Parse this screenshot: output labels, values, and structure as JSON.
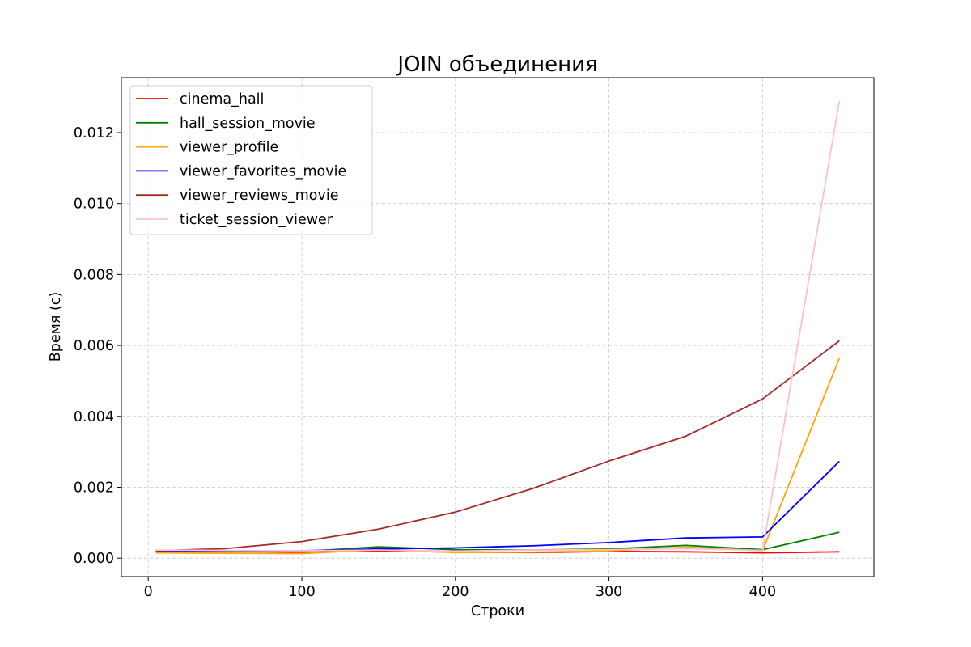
{
  "chart_data": {
    "type": "line",
    "title": "JOIN объединения",
    "xlabel": "Строки",
    "ylabel": "Время (с)",
    "xlim": [
      -17.5,
      472.5
    ],
    "ylim": [
      -0.00052,
      0.01355
    ],
    "xticks": [
      0,
      100,
      200,
      300,
      400
    ],
    "xtick_labels": [
      "0",
      "100",
      "200",
      "300",
      "400"
    ],
    "yticks": [
      0.0,
      0.002,
      0.004,
      0.006,
      0.008,
      0.01,
      0.012
    ],
    "ytick_labels": [
      "0.000",
      "0.002",
      "0.004",
      "0.006",
      "0.008",
      "0.010",
      "0.012"
    ],
    "grid": true,
    "legend_position": "upper-left",
    "x": [
      5,
      50,
      100,
      150,
      200,
      250,
      300,
      350,
      400,
      450
    ],
    "series": [
      {
        "name": "cinema_hall",
        "color": "#ff0000",
        "values": [
          0.00017,
          0.00019,
          0.00017,
          0.00021,
          0.00017,
          0.00016,
          0.00019,
          0.00018,
          0.00015,
          0.00018
        ]
      },
      {
        "name": "hall_session_movie",
        "color": "#008000",
        "values": [
          0.00019,
          0.00018,
          0.00019,
          0.00032,
          0.00024,
          0.00023,
          0.00026,
          0.00036,
          0.00024,
          0.00073
        ]
      },
      {
        "name": "viewer_profile",
        "color": "#ffa500",
        "values": [
          0.00015,
          0.00014,
          0.00013,
          0.00024,
          0.00016,
          0.00017,
          0.00021,
          0.00031,
          0.00021,
          0.00564
        ]
      },
      {
        "name": "viewer_favorites_movie",
        "color": "#0000ff",
        "values": [
          0.0002,
          0.00021,
          0.00021,
          0.00026,
          0.00029,
          0.00035,
          0.00044,
          0.00057,
          0.0006,
          0.00273
        ]
      },
      {
        "name": "viewer_reviews_movie",
        "color": "#a52a2a",
        "values": [
          0.00021,
          0.00027,
          0.00047,
          0.00082,
          0.0013,
          0.00196,
          0.00274,
          0.00344,
          0.00449,
          0.00613
        ]
      },
      {
        "name": "ticket_session_viewer",
        "color": "#ffc0cb",
        "values": [
          0.00023,
          0.00022,
          0.00021,
          0.00023,
          0.0002,
          0.00023,
          0.00024,
          0.00027,
          0.00022,
          0.01289
        ]
      }
    ]
  }
}
